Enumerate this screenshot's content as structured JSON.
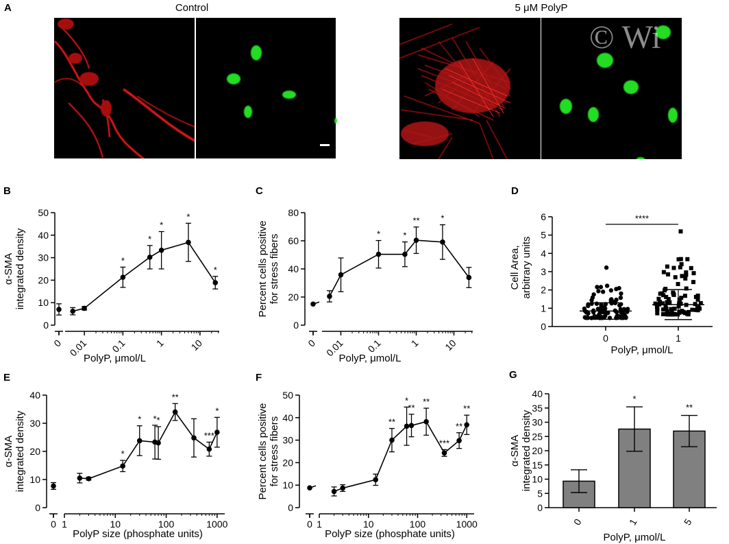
{
  "figure": {
    "panel_a": {
      "label": "A",
      "control_title": "Control",
      "treated_title": "5 μM PolyP",
      "watermark": "© Wi",
      "colors": {
        "actin": "#e01818",
        "nuclei": "#20e020",
        "background": "#000000"
      }
    }
  },
  "chart_data": [
    {
      "id": "B",
      "label": "B",
      "type": "line",
      "xscale": "log-with-zero",
      "xticks": [
        "0",
        "0.01",
        "0.1",
        "1",
        "10"
      ],
      "xlabel": "PolyP, μmol/L",
      "ylabel": [
        "α-SMA",
        "integrated density"
      ],
      "ylim": [
        0,
        50
      ],
      "yticks": [
        0,
        10,
        20,
        30,
        40,
        50
      ],
      "points": [
        {
          "x": 0,
          "y": 7,
          "err": 2.5,
          "sig": ""
        },
        {
          "x": 0.005,
          "y": 6.2,
          "err": 1.6,
          "sig": ""
        },
        {
          "x": 0.01,
          "y": 7.5,
          "err": 0.8,
          "sig": ""
        },
        {
          "x": 0.1,
          "y": 21.3,
          "err": 4.5,
          "sig": "*"
        },
        {
          "x": 0.5,
          "y": 30.2,
          "err": 5.2,
          "sig": "*"
        },
        {
          "x": 1,
          "y": 33.3,
          "err": 8.3,
          "sig": "*"
        },
        {
          "x": 5,
          "y": 36.8,
          "err": 8.5,
          "sig": "*"
        },
        {
          "x": 25,
          "y": 18.9,
          "err": 2.8,
          "sig": "*"
        }
      ]
    },
    {
      "id": "C",
      "label": "C",
      "type": "line",
      "xscale": "log-with-zero",
      "xticks": [
        "0",
        "0.01",
        "0.1",
        "1",
        "10"
      ],
      "xlabel": "PolyP, μmol/L",
      "ylabel": [
        "Percent cells positive",
        "for stress fibers"
      ],
      "ylim": [
        0,
        80
      ],
      "yticks": [
        0,
        20,
        40,
        60,
        80
      ],
      "points": [
        {
          "x": 0,
          "y": 15,
          "err": 0,
          "sig": ""
        },
        {
          "x": 0.005,
          "y": 20.5,
          "err": 4,
          "sig": ""
        },
        {
          "x": 0.01,
          "y": 35.8,
          "err": 12,
          "sig": ""
        },
        {
          "x": 0.1,
          "y": 50.4,
          "err": 9.8,
          "sig": "*"
        },
        {
          "x": 0.5,
          "y": 50.4,
          "err": 8.8,
          "sig": "*"
        },
        {
          "x": 1,
          "y": 60.4,
          "err": 9.4,
          "sig": "**"
        },
        {
          "x": 5,
          "y": 59.1,
          "err": 12.3,
          "sig": "*"
        },
        {
          "x": 25,
          "y": 33.9,
          "err": 7.2,
          "sig": ""
        }
      ]
    },
    {
      "id": "D",
      "label": "D",
      "type": "scatter",
      "categories": [
        "0",
        "1"
      ],
      "xlabel": "PolyP, μmol/L",
      "ylabel": [
        "Cell Area,",
        "arbitrary units"
      ],
      "ylim": [
        0,
        6
      ],
      "yticks": [
        0,
        1,
        2,
        3,
        4,
        5,
        6
      ],
      "groups": [
        {
          "name": "0",
          "marker": "circle",
          "mean": 0.85,
          "sd": 0.45,
          "max": 3.22
        },
        {
          "name": "1",
          "marker": "square",
          "mean": 1.2,
          "sd": 0.82,
          "max": 5.2
        }
      ],
      "significance": "****"
    },
    {
      "id": "E",
      "label": "E",
      "type": "line",
      "xscale": "log-with-zero",
      "xticks": [
        "0",
        "1",
        "10",
        "100",
        "1000"
      ],
      "xlabel": "PolyP size (phosphate units)",
      "ylabel": [
        "α-SMA",
        "integrated density"
      ],
      "ylim": [
        0,
        40
      ],
      "yticks": [
        0,
        10,
        20,
        30,
        40
      ],
      "points": [
        {
          "x": 0,
          "y": 7.7,
          "err": 1.2,
          "sig": ""
        },
        {
          "x": 2,
          "y": 10.5,
          "err": 1.7,
          "sig": ""
        },
        {
          "x": 3,
          "y": 10.3,
          "err": 0.5,
          "sig": ""
        },
        {
          "x": 14,
          "y": 14.8,
          "err": 2,
          "sig": "*"
        },
        {
          "x": 30,
          "y": 23.8,
          "err": 5.3,
          "sig": "*"
        },
        {
          "x": 60,
          "y": 23.3,
          "err": 6,
          "sig": "*"
        },
        {
          "x": 70,
          "y": 23.0,
          "err": 5.8,
          "sig": "*"
        },
        {
          "x": 150,
          "y": 34.0,
          "err": 3,
          "sig": "**"
        },
        {
          "x": 350,
          "y": 24.8,
          "err": 6.8,
          "sig": ""
        },
        {
          "x": 700,
          "y": 20.8,
          "err": 2.5,
          "sig": "***"
        },
        {
          "x": 1000,
          "y": 26.8,
          "err": 5.3,
          "sig": "*"
        }
      ]
    },
    {
      "id": "F",
      "label": "F",
      "type": "line",
      "xscale": "log-with-zero",
      "xticks": [
        "0",
        "1",
        "10",
        "100",
        "1000"
      ],
      "xlabel": "PolyP size (phosphate units)",
      "ylabel": [
        "Percent cells positive",
        "for stress fibers"
      ],
      "ylim": [
        0,
        50
      ],
      "yticks": [
        0,
        10,
        20,
        30,
        40,
        50
      ],
      "points": [
        {
          "x": 0,
          "y": 8.8,
          "err": 0,
          "sig": ""
        },
        {
          "x": 2,
          "y": 7.2,
          "err": 2,
          "sig": ""
        },
        {
          "x": 3,
          "y": 8.7,
          "err": 1.5,
          "sig": ""
        },
        {
          "x": 14,
          "y": 12.4,
          "err": 2.5,
          "sig": ""
        },
        {
          "x": 30,
          "y": 30.0,
          "err": 5.2,
          "sig": "**"
        },
        {
          "x": 60,
          "y": 36.2,
          "err": 8.5,
          "sig": "*"
        },
        {
          "x": 75,
          "y": 36.5,
          "err": 5,
          "sig": "**"
        },
        {
          "x": 150,
          "y": 38.2,
          "err": 6,
          "sig": "**"
        },
        {
          "x": 350,
          "y": 24.3,
          "err": 1.5,
          "sig": "***"
        },
        {
          "x": 700,
          "y": 29.8,
          "err": 3.5,
          "sig": "**"
        },
        {
          "x": 1000,
          "y": 36.8,
          "err": 4.3,
          "sig": "**"
        }
      ]
    },
    {
      "id": "G",
      "label": "G",
      "type": "bar",
      "categories": [
        "0",
        "1",
        "5"
      ],
      "values": [
        9.3,
        27.6,
        26.9
      ],
      "errors": [
        4.0,
        7.8,
        5.5
      ],
      "sig": [
        "",
        "*",
        "**"
      ],
      "xlabel": "PolyP, μmol/L",
      "ylabel": [
        "α-SMA",
        "integrated density"
      ],
      "ylim": [
        0,
        40
      ],
      "yticks": [
        0,
        5,
        10,
        15,
        20,
        25,
        30,
        35,
        40
      ],
      "bar_color": "#808080"
    }
  ]
}
